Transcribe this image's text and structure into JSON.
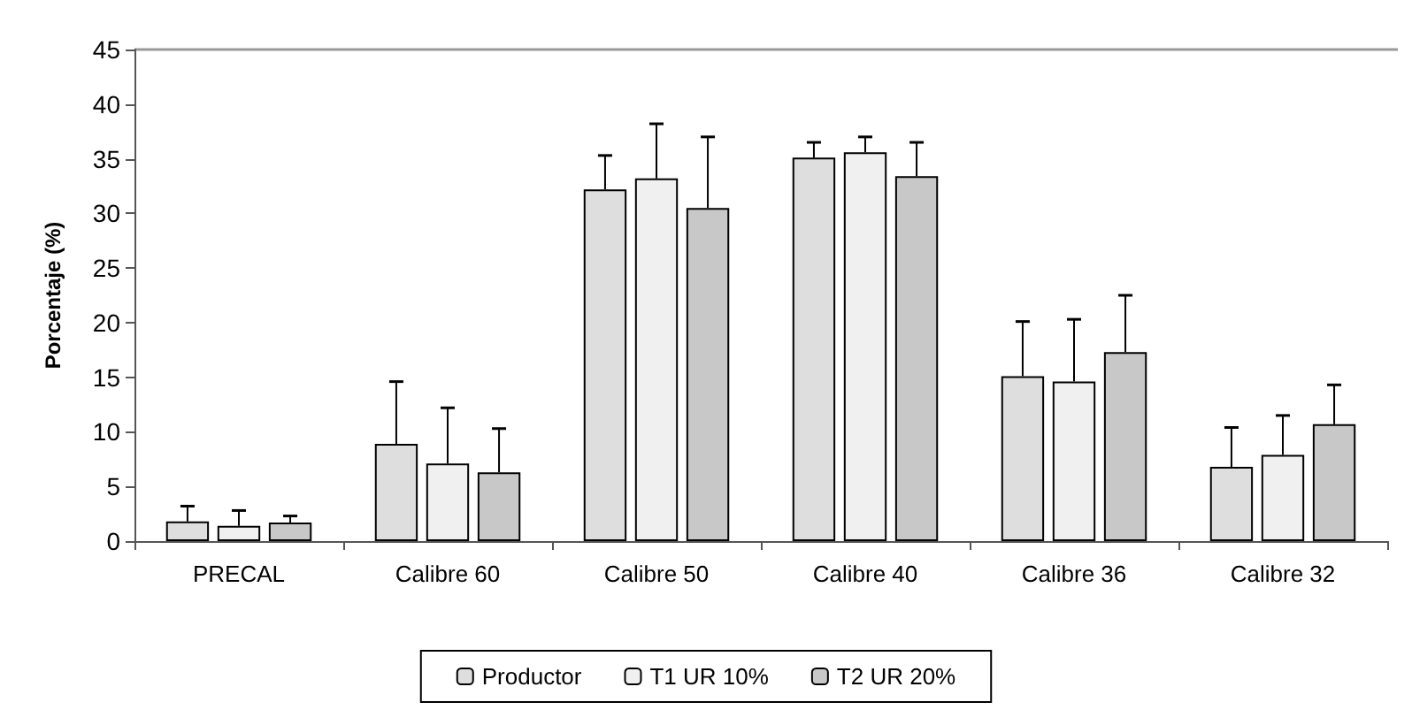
{
  "chart_data": {
    "type": "bar",
    "ylabel": "Porcentaje (%)",
    "categories": [
      "PRECAL",
      "Calibre 60",
      "Calibre 50",
      "Calibre 40",
      "Calibre 36",
      "Calibre 32"
    ],
    "series": [
      {
        "name": "Productor",
        "color": "#dedede",
        "values": [
          1.8,
          8.9,
          32.2,
          35.1,
          15.1,
          6.8
        ],
        "errors": [
          [
            1.8,
            3.2
          ],
          [
            8.9,
            14.6
          ],
          [
            32.2,
            35.3
          ],
          [
            35.1,
            36.5
          ],
          [
            15.1,
            20.1
          ],
          [
            6.8,
            10.4
          ]
        ]
      },
      {
        "name": "T1 UR 10%",
        "color": "#f0f0f0",
        "values": [
          1.4,
          7.1,
          33.2,
          35.6,
          14.6,
          7.9
        ],
        "errors": [
          [
            1.4,
            2.8
          ],
          [
            7.1,
            12.2
          ],
          [
            33.2,
            38.2
          ],
          [
            35.6,
            37.0
          ],
          [
            14.6,
            20.3
          ],
          [
            7.9,
            11.5
          ]
        ]
      },
      {
        "name": "T2 UR 20%",
        "color": "#c8c8c8",
        "values": [
          1.7,
          6.3,
          30.5,
          33.4,
          17.3,
          10.7
        ],
        "errors": [
          [
            1.7,
            2.3
          ],
          [
            6.3,
            10.3
          ],
          [
            30.5,
            37.0
          ],
          [
            33.4,
            36.5
          ],
          [
            17.3,
            22.5
          ],
          [
            10.7,
            14.3
          ]
        ]
      }
    ],
    "ylim": [
      0,
      45
    ],
    "yticks": [
      0,
      5,
      10,
      15,
      20,
      25,
      30,
      35,
      40,
      45
    ],
    "grid": false,
    "legend": "bottom"
  }
}
